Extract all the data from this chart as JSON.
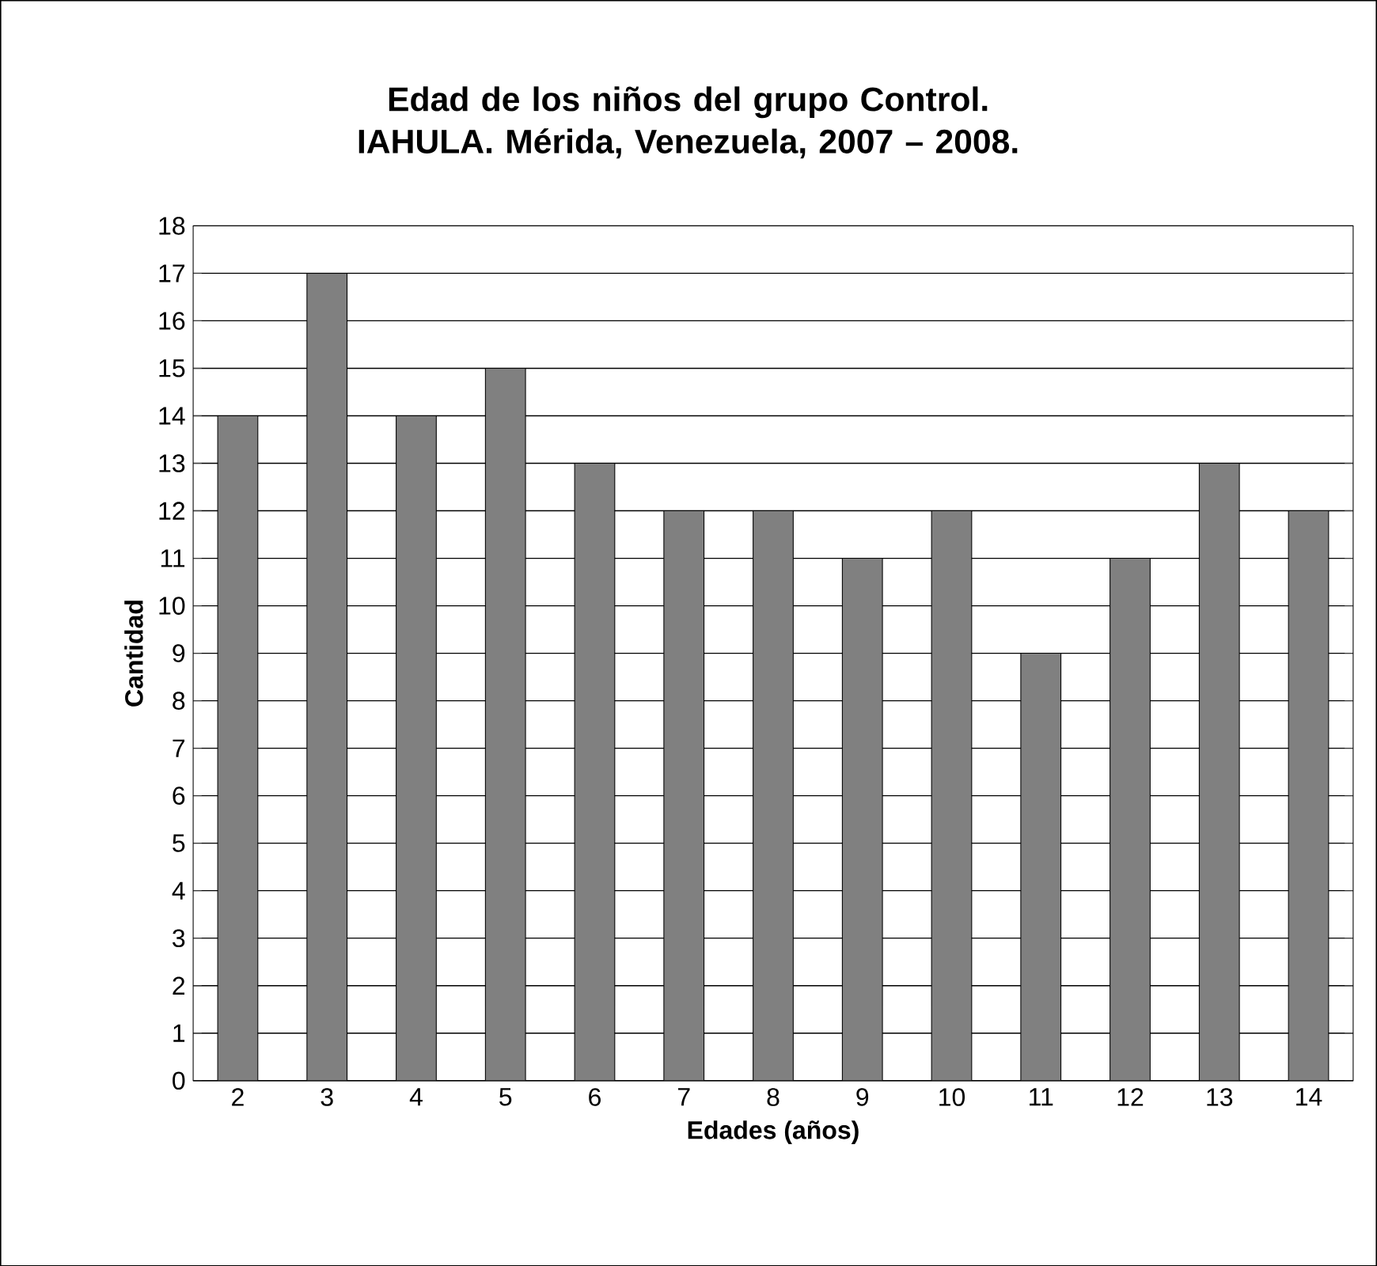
{
  "chart_data": {
    "type": "bar",
    "title": "Edad de los niños del grupo Control. IAHULA. Mérida, Venezuela,  2007 – 2008.",
    "xlabel": "Edades (años)",
    "ylabel": "Cantidad",
    "categories": [
      "2",
      "3",
      "4",
      "5",
      "6",
      "7",
      "8",
      "9",
      "10",
      "11",
      "12",
      "13",
      "14"
    ],
    "values": [
      14,
      17,
      14,
      15,
      13,
      12,
      12,
      11,
      12,
      9,
      11,
      13,
      12
    ],
    "color": "#808080",
    "ylim": [
      0,
      18
    ],
    "yticks": [
      0,
      1,
      2,
      3,
      4,
      5,
      6,
      7,
      8,
      9,
      10,
      11,
      12,
      13,
      14,
      15,
      16,
      17,
      18
    ],
    "grid": "y"
  }
}
